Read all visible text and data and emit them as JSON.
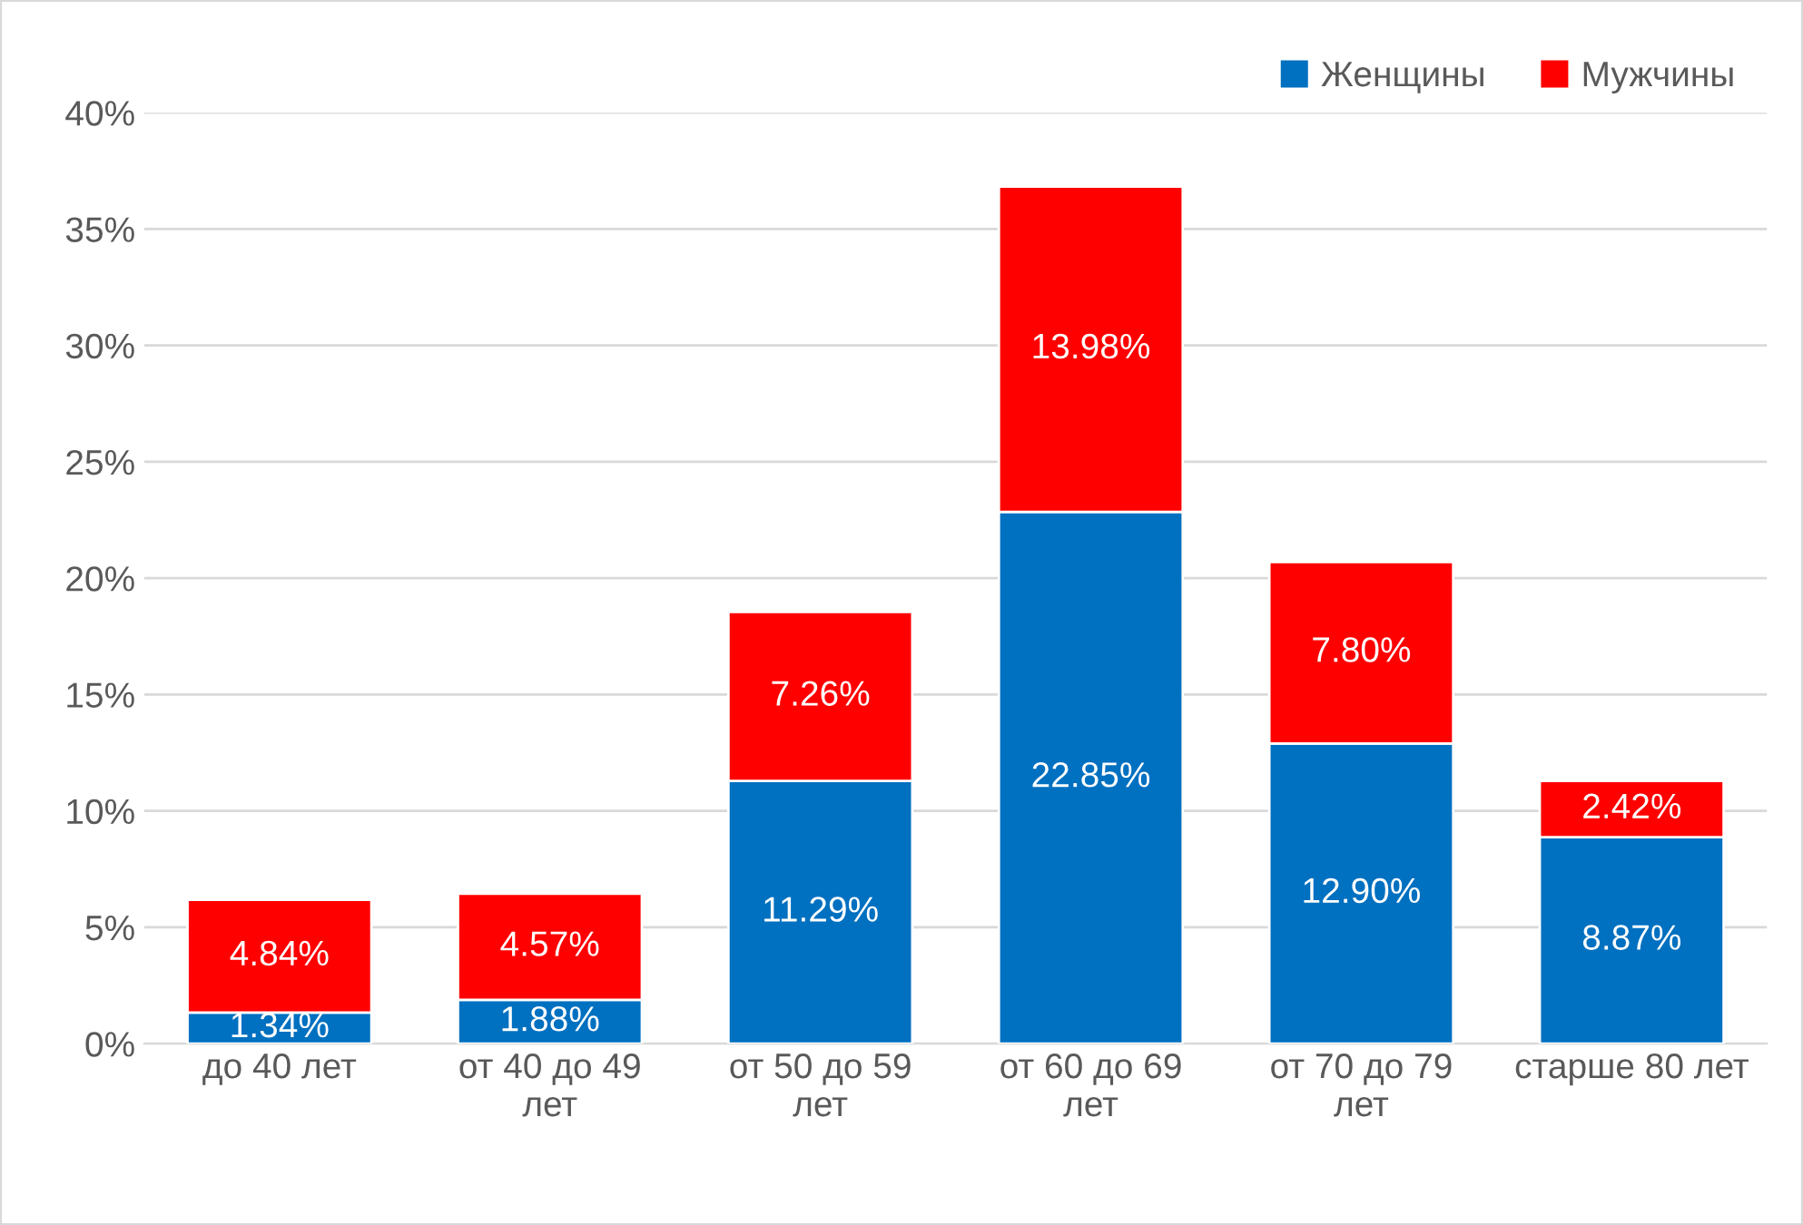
{
  "chart_data": {
    "type": "bar",
    "stacked": true,
    "categories": [
      "до 40 лет",
      "от 40 до 49 лет",
      "от 50 до 59 лет",
      "от 60 до 69 лет",
      "от 70 до 79 лет",
      "старше 80 лет"
    ],
    "series": [
      {
        "name": "Женщины",
        "color": "#0070c0",
        "values": [
          1.34,
          1.88,
          11.29,
          22.85,
          12.9,
          8.87
        ],
        "value_labels": [
          "1.34%",
          "1.88%",
          "11.29%",
          "22.85%",
          "12.90%",
          "8.87%"
        ]
      },
      {
        "name": "Мужчины",
        "color": "#ff0000",
        "values": [
          4.84,
          4.57,
          7.26,
          13.98,
          7.8,
          2.42
        ],
        "value_labels": [
          "4.84%",
          "4.57%",
          "7.26%",
          "13.98%",
          "7.80%",
          "2.42%"
        ]
      }
    ],
    "ylim": [
      0,
      40
    ],
    "yticks": [
      {
        "value": 0,
        "label": "0%"
      },
      {
        "value": 5,
        "label": "5%"
      },
      {
        "value": 10,
        "label": "10%"
      },
      {
        "value": 15,
        "label": "15%"
      },
      {
        "value": 20,
        "label": "20%"
      },
      {
        "value": 25,
        "label": "25%"
      },
      {
        "value": 30,
        "label": "30%"
      },
      {
        "value": 35,
        "label": "35%"
      },
      {
        "value": 40,
        "label": "40%"
      }
    ],
    "grid": "y",
    "legend": "top right"
  }
}
